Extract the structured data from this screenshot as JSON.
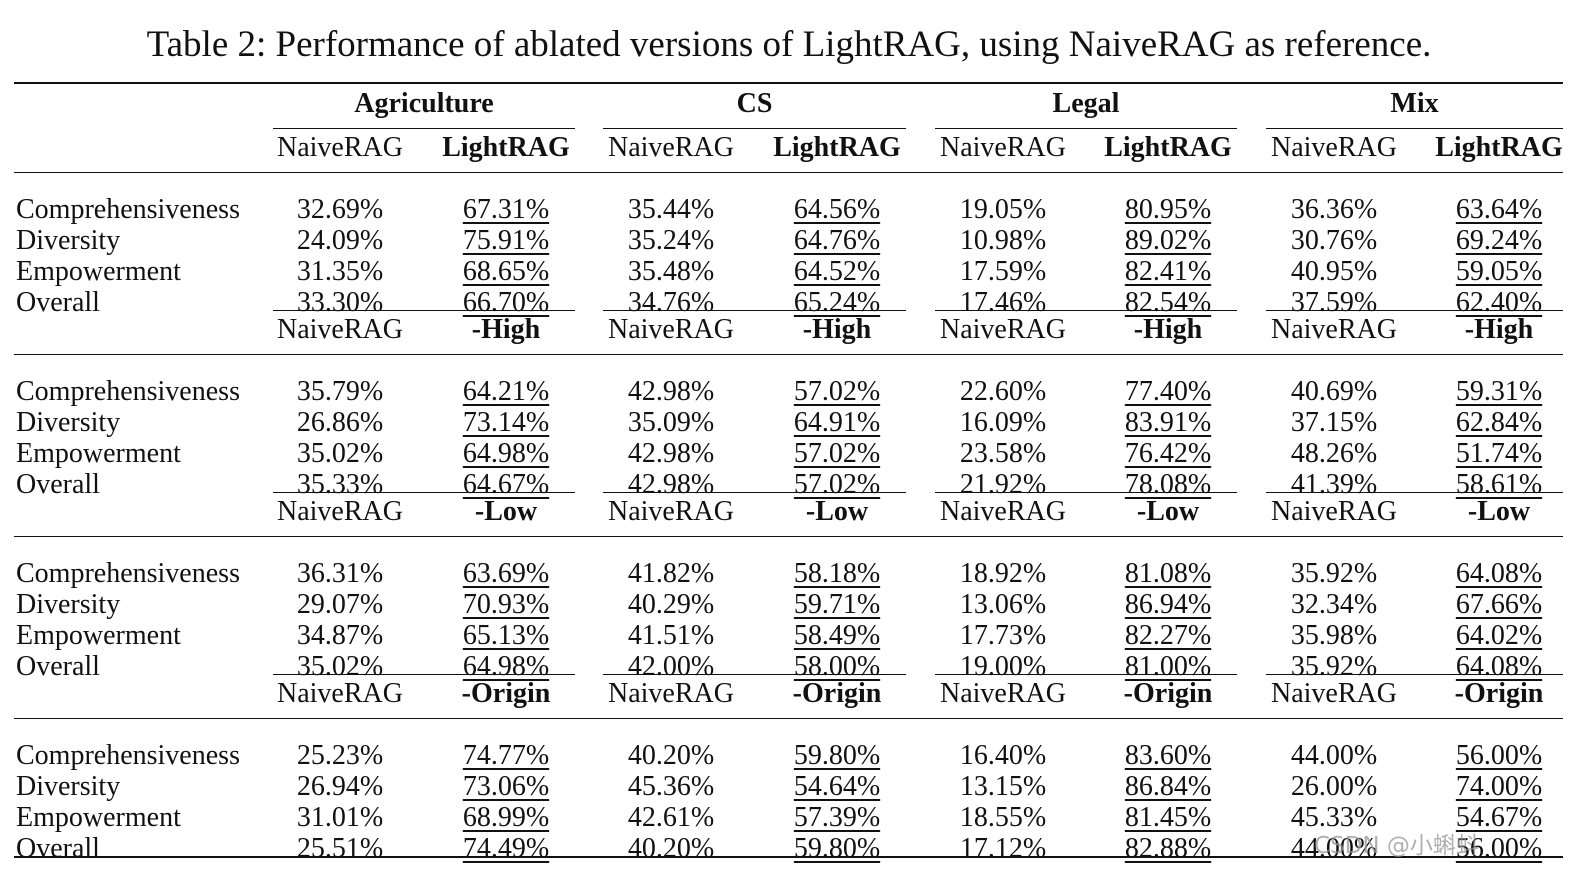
{
  "caption": "Table 2: Performance of ablated versions of LightRAG, using NaiveRAG as reference.",
  "domains": [
    "Agriculture",
    "CS",
    "Legal",
    "Mix"
  ],
  "blocks": [
    {
      "baseline": "NaiveRAG",
      "variant": "LightRAG",
      "rows": [
        {
          "metric": "Comprehensiveness",
          "values": [
            [
              "32.69%",
              "67.31%"
            ],
            [
              "35.44%",
              "64.56%"
            ],
            [
              "19.05%",
              "80.95%"
            ],
            [
              "36.36%",
              "63.64%"
            ]
          ]
        },
        {
          "metric": "Diversity",
          "values": [
            [
              "24.09%",
              "75.91%"
            ],
            [
              "35.24%",
              "64.76%"
            ],
            [
              "10.98%",
              "89.02%"
            ],
            [
              "30.76%",
              "69.24%"
            ]
          ]
        },
        {
          "metric": "Empowerment",
          "values": [
            [
              "31.35%",
              "68.65%"
            ],
            [
              "35.48%",
              "64.52%"
            ],
            [
              "17.59%",
              "82.41%"
            ],
            [
              "40.95%",
              "59.05%"
            ]
          ]
        },
        {
          "metric": "Overall",
          "values": [
            [
              "33.30%",
              "66.70%"
            ],
            [
              "34.76%",
              "65.24%"
            ],
            [
              "17.46%",
              "82.54%"
            ],
            [
              "37.59%",
              "62.40%"
            ]
          ]
        }
      ]
    },
    {
      "baseline": "NaiveRAG",
      "variant": "-High",
      "rows": [
        {
          "metric": "Comprehensiveness",
          "values": [
            [
              "35.79%",
              "64.21%"
            ],
            [
              "42.98%",
              "57.02%"
            ],
            [
              "22.60%",
              "77.40%"
            ],
            [
              "40.69%",
              "59.31%"
            ]
          ]
        },
        {
          "metric": "Diversity",
          "values": [
            [
              "26.86%",
              "73.14%"
            ],
            [
              "35.09%",
              "64.91%"
            ],
            [
              "16.09%",
              "83.91%"
            ],
            [
              "37.15%",
              "62.84%"
            ]
          ]
        },
        {
          "metric": "Empowerment",
          "values": [
            [
              "35.02%",
              "64.98%"
            ],
            [
              "42.98%",
              "57.02%"
            ],
            [
              "23.58%",
              "76.42%"
            ],
            [
              "48.26%",
              "51.74%"
            ]
          ]
        },
        {
          "metric": "Overall",
          "values": [
            [
              "35.33%",
              "64.67%"
            ],
            [
              "42.98%",
              "57.02%"
            ],
            [
              "21.92%",
              "78.08%"
            ],
            [
              "41.39%",
              "58.61%"
            ]
          ]
        }
      ]
    },
    {
      "baseline": "NaiveRAG",
      "variant": "-Low",
      "rows": [
        {
          "metric": "Comprehensiveness",
          "values": [
            [
              "36.31%",
              "63.69%"
            ],
            [
              "41.82%",
              "58.18%"
            ],
            [
              "18.92%",
              "81.08%"
            ],
            [
              "35.92%",
              "64.08%"
            ]
          ]
        },
        {
          "metric": "Diversity",
          "values": [
            [
              "29.07%",
              "70.93%"
            ],
            [
              "40.29%",
              "59.71%"
            ],
            [
              "13.06%",
              "86.94%"
            ],
            [
              "32.34%",
              "67.66%"
            ]
          ]
        },
        {
          "metric": "Empowerment",
          "values": [
            [
              "34.87%",
              "65.13%"
            ],
            [
              "41.51%",
              "58.49%"
            ],
            [
              "17.73%",
              "82.27%"
            ],
            [
              "35.98%",
              "64.02%"
            ]
          ]
        },
        {
          "metric": "Overall",
          "values": [
            [
              "35.02%",
              "64.98%"
            ],
            [
              "42.00%",
              "58.00%"
            ],
            [
              "19.00%",
              "81.00%"
            ],
            [
              "35.92%",
              "64.08%"
            ]
          ]
        }
      ]
    },
    {
      "baseline": "NaiveRAG",
      "variant": "-Origin",
      "rows": [
        {
          "metric": "Comprehensiveness",
          "values": [
            [
              "25.23%",
              "74.77%"
            ],
            [
              "40.20%",
              "59.80%"
            ],
            [
              "16.40%",
              "83.60%"
            ],
            [
              "44.00%",
              "56.00%"
            ]
          ]
        },
        {
          "metric": "Diversity",
          "values": [
            [
              "26.94%",
              "73.06%"
            ],
            [
              "45.36%",
              "54.64%"
            ],
            [
              "13.15%",
              "86.84%"
            ],
            [
              "26.00%",
              "74.00%"
            ]
          ]
        },
        {
          "metric": "Empowerment",
          "values": [
            [
              "31.01%",
              "68.99%"
            ],
            [
              "42.61%",
              "57.39%"
            ],
            [
              "18.55%",
              "81.45%"
            ],
            [
              "45.33%",
              "54.67%"
            ]
          ]
        },
        {
          "metric": "Overall",
          "values": [
            [
              "25.51%",
              "74.49%"
            ],
            [
              "40.20%",
              "59.80%"
            ],
            [
              "17.12%",
              "82.88%"
            ],
            [
              "44.00%",
              "56.00%"
            ]
          ]
        }
      ]
    }
  ],
  "watermark": "CSDN @小蝌蚪"
}
